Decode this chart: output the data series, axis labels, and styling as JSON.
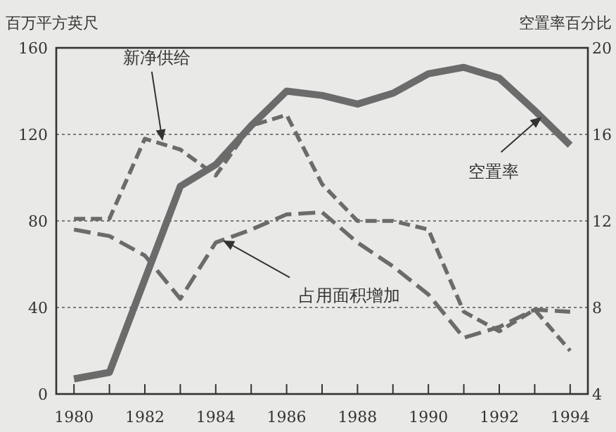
{
  "chart_data": {
    "type": "line",
    "ylabel": "百万平方英尺",
    "y2label": "空置率百分比",
    "x": [
      1980,
      1981,
      1982,
      1983,
      1984,
      1985,
      1986,
      1987,
      1988,
      1989,
      1990,
      1991,
      1992,
      1993,
      1994
    ],
    "xlim": [
      1979.5,
      1994.5
    ],
    "xticks": [
      1980,
      {
        "value": 1981,
        "label": null
      },
      1982,
      {
        "value": 1983,
        "label": null
      },
      1984,
      {
        "value": 1985,
        "label": null
      },
      1986,
      {
        "value": 1987,
        "label": null
      },
      1988,
      {
        "value": 1989,
        "label": null
      },
      1990,
      {
        "value": 1991,
        "label": null
      },
      1992,
      {
        "value": 1993,
        "label": null
      },
      1994
    ],
    "ylim": [
      0,
      160
    ],
    "yticks": [
      0,
      40,
      80,
      120,
      160
    ],
    "y2lim": [
      4,
      20
    ],
    "y2ticks": [
      4,
      8,
      12,
      16,
      20
    ],
    "grid": "y",
    "series": [
      {
        "color": "#6b6b6b",
        "line_style": "dashed",
        "values": [
          81,
          81,
          118,
          113,
          101,
          124,
          129,
          97,
          80,
          80,
          76,
          38,
          29,
          39,
          20
        ]
      },
      {
        "color": "#6b6b6b",
        "line_style": "dashed",
        "values": [
          76,
          73,
          64,
          44,
          70,
          76,
          83,
          84,
          70,
          59,
          46,
          26,
          31,
          39,
          38
        ]
      },
      {
        "color": "#6b6b6b",
        "line_style": "solid",
        "axis": "y2",
        "values": [
          4.7,
          5.0,
          9.3,
          13.6,
          14.6,
          16.4,
          18.0,
          17.8,
          17.4,
          17.9,
          18.8,
          19.1,
          18.6,
          17.1,
          15.5
        ]
      }
    ],
    "annotations": [
      {
        "text": "新净供给",
        "x": 1982.5,
        "y": 117
      },
      {
        "text": "空置率",
        "x": 1993.2,
        "y": 128
      },
      {
        "text": "占用面积增加",
        "x": 1984.2,
        "y": 71
      }
    ]
  }
}
